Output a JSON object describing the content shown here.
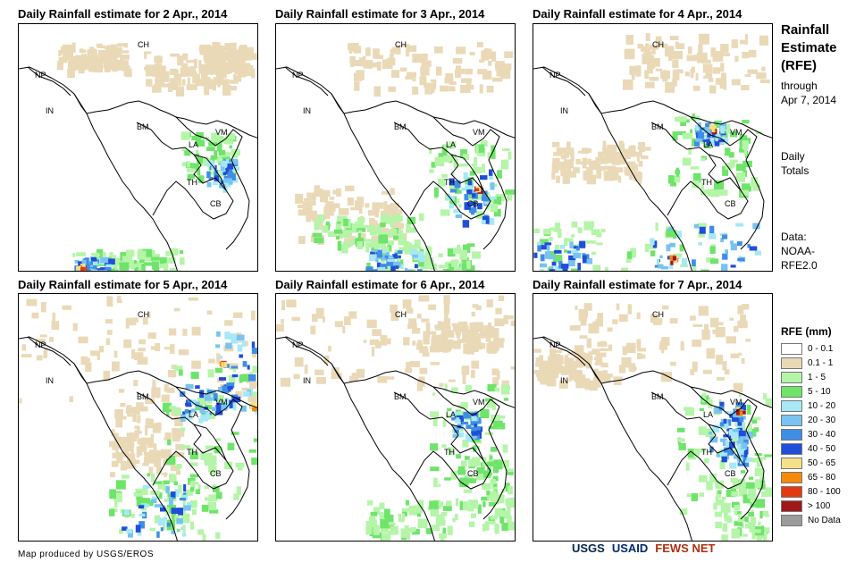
{
  "panels": [
    {
      "title": "Daily Rainfall estimate for 2 Apr., 2014"
    },
    {
      "title": "Daily Rainfall estimate for 3 Apr., 2014"
    },
    {
      "title": "Daily Rainfall estimate for 4 Apr., 2014"
    },
    {
      "title": "Daily Rainfall estimate for 5 Apr., 2014"
    },
    {
      "title": "Daily Rainfall estimate for 6 Apr., 2014"
    },
    {
      "title": "Daily Rainfall estimate for 7 Apr., 2014"
    }
  ],
  "country_labels": [
    "CH",
    "NP",
    "IN",
    "BM",
    "LA",
    "VM",
    "TH",
    "CB"
  ],
  "sidebar": {
    "title_lines": [
      "Rainfall",
      "Estimate",
      "(RFE)"
    ],
    "through_lines": [
      "through",
      "Apr 7, 2014"
    ],
    "daily_lines": [
      "Daily",
      "Totals"
    ],
    "data_lines": [
      "Data:",
      "NOAA-",
      "RFE2.0"
    ]
  },
  "legend": {
    "title": "RFE (mm)",
    "items": [
      {
        "label": "0 - 0.1",
        "color": "#ffffff"
      },
      {
        "label": "0.1 - 1",
        "color": "#ead9b7"
      },
      {
        "label": "1 - 5",
        "color": "#b4f5a8"
      },
      {
        "label": "5 - 10",
        "color": "#6fe46a"
      },
      {
        "label": "10 - 20",
        "color": "#a6e8f5"
      },
      {
        "label": "20 - 30",
        "color": "#78c3ef"
      },
      {
        "label": "30 - 40",
        "color": "#3f8ee5"
      },
      {
        "label": "40 - 50",
        "color": "#1f4fd9"
      },
      {
        "label": "50 - 65",
        "color": "#f5e08a"
      },
      {
        "label": "65 - 80",
        "color": "#f58a0a"
      },
      {
        "label": "80 - 100",
        "color": "#e23a10"
      },
      {
        "label": "> 100",
        "color": "#a01818"
      },
      {
        "label": "No Data",
        "color": "#9b9b9b"
      }
    ]
  },
  "credit": "Map produced by USGS/EROS",
  "logos": [
    "USGS",
    "USAID",
    "FEWS NET"
  ]
}
